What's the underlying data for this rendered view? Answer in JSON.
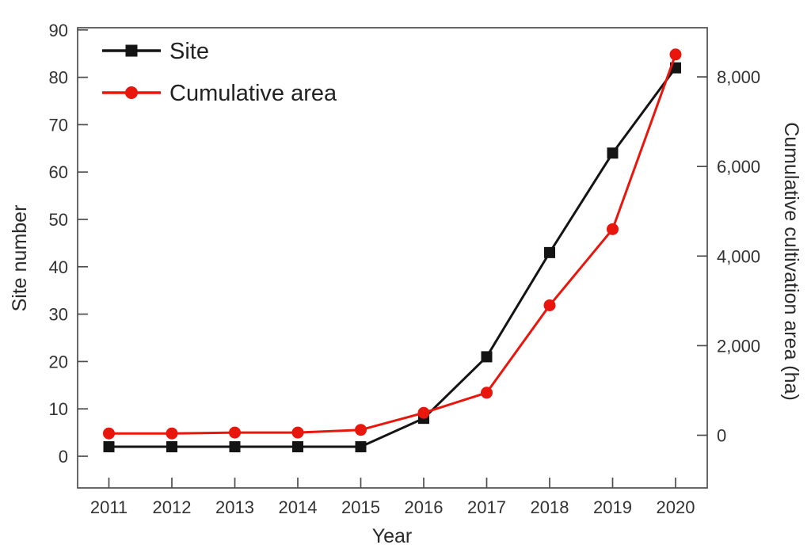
{
  "figure": {
    "background": "#ffffff",
    "frame_color": "#4d4d4d",
    "legend": [
      {
        "label": "Site",
        "color": "#141414",
        "marker": "square"
      },
      {
        "label": "Cumulative area",
        "color": "#e8160d",
        "marker": "circle"
      }
    ],
    "left_axis": {
      "title": "Site number",
      "ticks": [
        0,
        10,
        20,
        30,
        40,
        50,
        60,
        70,
        80,
        90
      ]
    },
    "right_axis": {
      "title": "Cumulative cultivation area (ha)",
      "ticks": [
        0,
        2000,
        4000,
        6000,
        8000
      ]
    },
    "x_axis": {
      "title": "Year",
      "ticks": [
        2011,
        2012,
        2013,
        2014,
        2015,
        2016,
        2017,
        2018,
        2019,
        2020
      ]
    }
  },
  "chart_data": {
    "type": "line",
    "x": [
      2011,
      2012,
      2013,
      2014,
      2015,
      2016,
      2017,
      2018,
      2019,
      2020
    ],
    "series": [
      {
        "name": "Site",
        "axis": "left",
        "color": "#141414",
        "marker": "square",
        "values": [
          2,
          2,
          2,
          2,
          2,
          8,
          21,
          43,
          64,
          82
        ]
      },
      {
        "name": "Cumulative area",
        "axis": "right",
        "color": "#e8160d",
        "marker": "circle",
        "values": [
          40,
          40,
          60,
          60,
          120,
          500,
          950,
          2900,
          4600,
          8500
        ]
      }
    ],
    "title": "",
    "xlabel": "Year",
    "ylabel_left": "Site number",
    "ylabel_right": "Cumulative cultivation area (ha)",
    "ylim_left": [
      0,
      90
    ],
    "ylim_right": [
      0,
      8000
    ],
    "grid": false,
    "legend_position": "upper-left"
  }
}
